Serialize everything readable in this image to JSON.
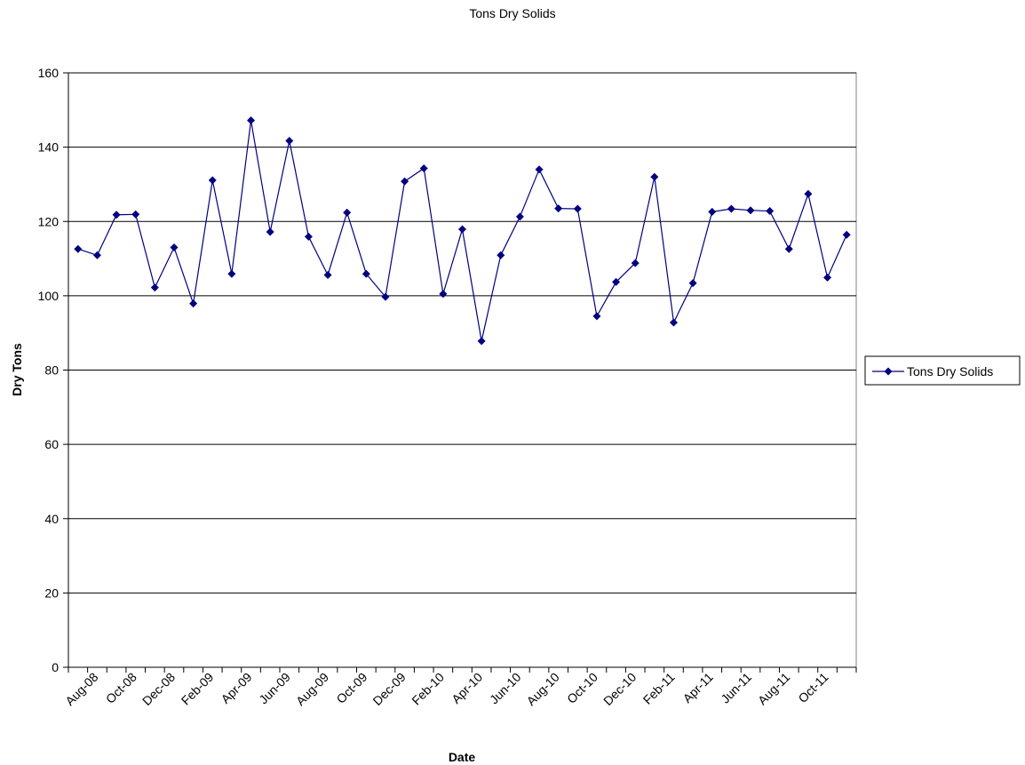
{
  "chart_data": {
    "type": "line",
    "title": "Tons Dry Solids",
    "xlabel": "Date",
    "ylabel": "Dry Tons",
    "ylim": [
      0,
      160
    ],
    "yticks": [
      0,
      20,
      40,
      60,
      80,
      100,
      120,
      140,
      160
    ],
    "grid": true,
    "legend_position": "right",
    "x": [
      "Jul-08",
      "Aug-08",
      "Sep-08",
      "Oct-08",
      "Nov-08",
      "Dec-08",
      "Jan-09",
      "Feb-09",
      "Mar-09",
      "Apr-09",
      "May-09",
      "Jun-09",
      "Jul-09",
      "Aug-09",
      "Sep-09",
      "Oct-09",
      "Nov-09",
      "Dec-09",
      "Jan-10",
      "Feb-10",
      "Mar-10",
      "Apr-10",
      "May-10",
      "Jun-10",
      "Jul-10",
      "Aug-10",
      "Sep-10",
      "Oct-10",
      "Nov-10",
      "Dec-10",
      "Jan-11",
      "Feb-11",
      "Mar-11",
      "Apr-11",
      "May-11",
      "Jun-11",
      "Jul-11",
      "Aug-11",
      "Sep-11",
      "Oct-11",
      "Nov-11"
    ],
    "x_tick_labels": [
      "Aug-08",
      "Oct-08",
      "Dec-08",
      "Feb-09",
      "Apr-09",
      "Jun-09",
      "Aug-09",
      "Oct-09",
      "Dec-09",
      "Feb-10",
      "Apr-10",
      "Jun-10",
      "Aug-10",
      "Oct-10",
      "Dec-10",
      "Feb-11",
      "Apr-11",
      "Jun-11",
      "Aug-11",
      "Oct-11"
    ],
    "series": [
      {
        "name": "Tons Dry Solids",
        "color": "#000080",
        "marker": "diamond",
        "values": [
          112.6,
          110.9,
          121.8,
          121.9,
          102.2,
          113,
          97.9,
          131.1,
          105.9,
          147.2,
          117.2,
          141.7,
          115.9,
          105.6,
          122.4,
          105.9,
          99.7,
          130.8,
          134.3,
          100.5,
          117.9,
          87.8,
          110.9,
          121.3,
          134,
          123.5,
          123.4,
          94.5,
          103.7,
          108.8,
          132,
          92.8,
          103.4,
          122.6,
          123.4,
          123,
          122.8,
          112.6,
          127.4,
          104.9,
          116.4
        ]
      }
    ]
  }
}
